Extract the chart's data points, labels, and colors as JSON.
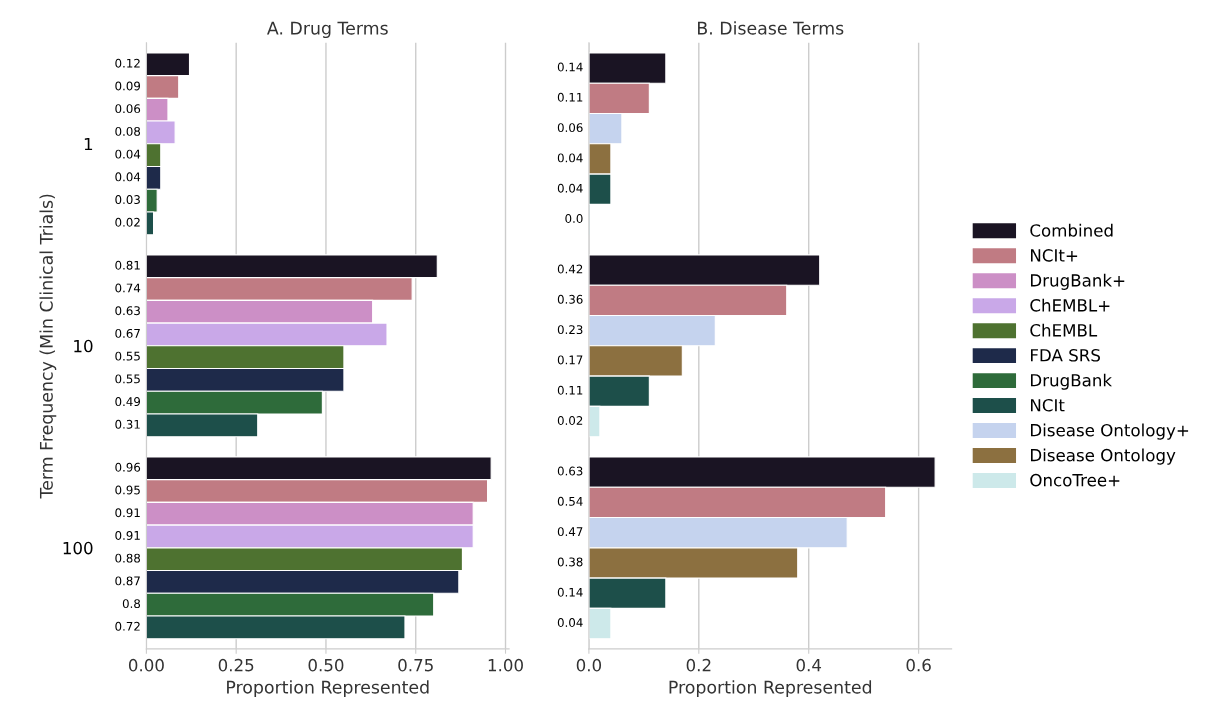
{
  "chart_data": [
    {
      "type": "bar",
      "orientation": "horizontal",
      "title": "A. Drug Terms",
      "xlabel": "Proportion Represented",
      "ylabel": "Term Frequency (Min Clinical Trials)",
      "categories": [
        "1",
        "10",
        "100"
      ],
      "xlim": [
        0,
        1.01
      ],
      "xticks": [
        {
          "value": 0,
          "label": "0.00"
        },
        {
          "value": 0.25,
          "label": "0.25"
        },
        {
          "value": 0.5,
          "label": "0.50"
        },
        {
          "value": 0.75,
          "label": "0.75"
        },
        {
          "value": 1.0,
          "label": "1.00"
        }
      ],
      "grid": "x",
      "data_labels": true,
      "legend": "right",
      "series": [
        {
          "name": "Combined",
          "color": "#1a1423",
          "values": [
            0.12,
            0.81,
            0.96
          ]
        },
        {
          "name": "NCIt+",
          "color": "#c07b83",
          "values": [
            0.09,
            0.74,
            0.95
          ]
        },
        {
          "name": "DrugBank+",
          "color": "#cc8fc6",
          "values": [
            0.06,
            0.63,
            0.91
          ]
        },
        {
          "name": "ChEMBL+",
          "color": "#c9a8e8",
          "values": [
            0.08,
            0.67,
            0.91
          ]
        },
        {
          "name": "ChEMBL",
          "color": "#4e7230",
          "values": [
            0.04,
            0.55,
            0.88
          ]
        },
        {
          "name": "FDA SRS",
          "color": "#1e2a4a",
          "values": [
            0.04,
            0.55,
            0.87
          ]
        },
        {
          "name": "DrugBank",
          "color": "#2e6b3a",
          "values": [
            0.03,
            0.49,
            0.8
          ]
        },
        {
          "name": "NCIt",
          "color": "#1d4f4a",
          "values": [
            0.02,
            0.31,
            0.72
          ]
        }
      ]
    },
    {
      "type": "bar",
      "orientation": "horizontal",
      "title": "B. Disease Terms",
      "xlabel": "Proportion Represented",
      "categories": [
        "1",
        "10",
        "100"
      ],
      "xlim": [
        0,
        0.66
      ],
      "xticks": [
        {
          "value": 0,
          "label": "0.0"
        },
        {
          "value": 0.2,
          "label": "0.2"
        },
        {
          "value": 0.4,
          "label": "0.4"
        },
        {
          "value": 0.6,
          "label": "0.6"
        }
      ],
      "grid": "x",
      "data_labels": true,
      "tick_labels": "x",
      "legend": "right",
      "series": [
        {
          "name": "Combined",
          "color": "#1a1423",
          "values": [
            0.14,
            0.42,
            0.63
          ]
        },
        {
          "name": "NCIt+",
          "color": "#c07b83",
          "values": [
            0.11,
            0.36,
            0.54
          ]
        },
        {
          "name": "Disease Ontology+",
          "color": "#c5d3ee",
          "values": [
            0.06,
            0.23,
            0.47
          ]
        },
        {
          "name": "Disease Ontology",
          "color": "#8c7040",
          "values": [
            0.04,
            0.17,
            0.38
          ]
        },
        {
          "name": "NCIt",
          "color": "#1d4f4a",
          "values": [
            0.04,
            0.11,
            0.14
          ]
        },
        {
          "name": "OncoTree+",
          "color": "#cde9ea",
          "values": [
            0.0,
            0.02,
            0.04
          ],
          "value_labels": [
            "0.0",
            "0.02",
            "0.04"
          ]
        }
      ]
    }
  ]
}
